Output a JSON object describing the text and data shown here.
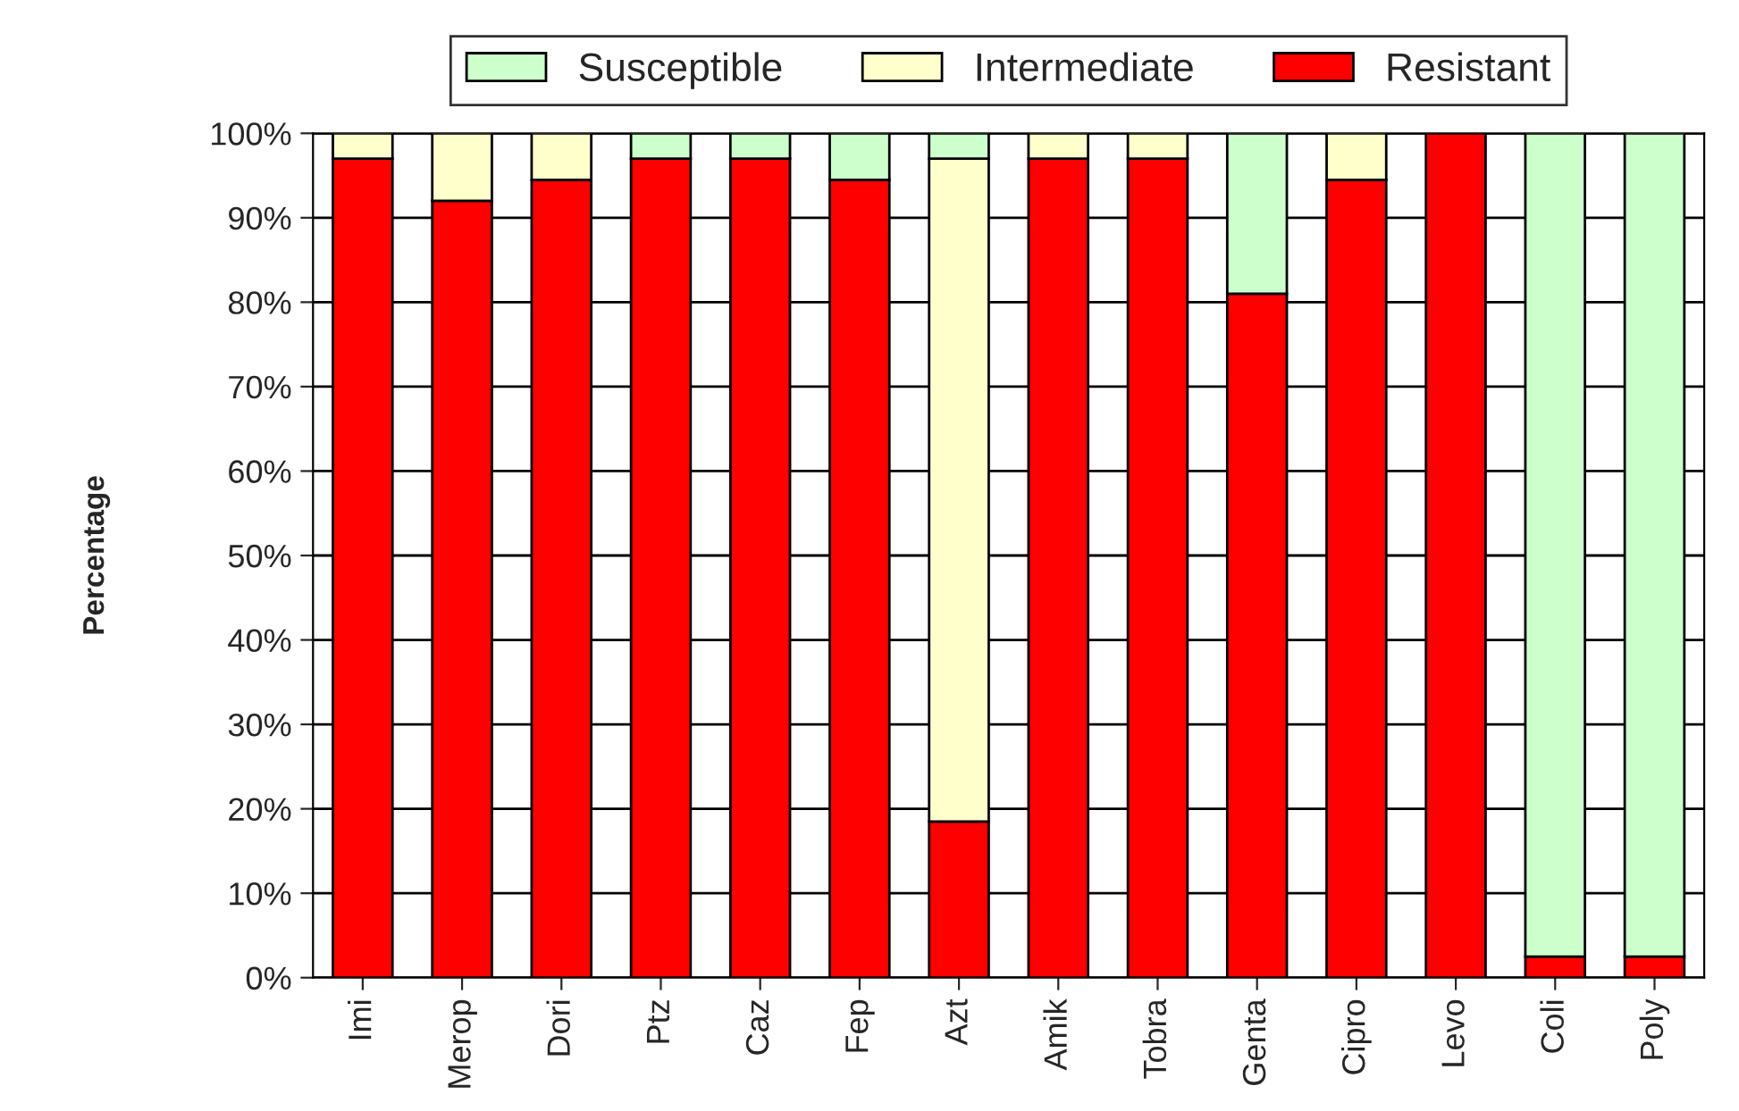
{
  "chart_data": {
    "type": "bar",
    "stacked": true,
    "ylabel": "Percentage",
    "categories": [
      "Imi",
      "Merop",
      "Dori",
      "Ptz",
      "Caz",
      "Fep",
      "Azt",
      "Amik",
      "Tobra",
      "Genta",
      "Cipro",
      "Levo",
      "Coli",
      "Poly"
    ],
    "series": [
      {
        "name": "Resistant",
        "color": "#ff0000",
        "values": [
          97,
          92,
          94.5,
          97,
          97,
          94.5,
          18.5,
          97,
          97,
          81,
          94.5,
          100,
          2.5,
          2.5
        ]
      },
      {
        "name": "Intermediate",
        "color": "#ffffcc",
        "values": [
          3,
          8,
          5.5,
          null,
          null,
          null,
          78.5,
          3,
          3,
          null,
          5.5,
          null,
          null,
          null
        ]
      },
      {
        "name": "Susceptible",
        "color": "#ccffcc",
        "values": [
          null,
          null,
          null,
          3,
          3,
          5.5,
          3,
          null,
          null,
          19,
          null,
          null,
          97.5,
          97.5
        ]
      }
    ],
    "ylim": [
      0,
      100
    ],
    "yticks": [
      {
        "value": 0,
        "label": "0%"
      },
      {
        "value": 10,
        "label": "10%"
      },
      {
        "value": 20,
        "label": "20%"
      },
      {
        "value": 30,
        "label": "30%"
      },
      {
        "value": 40,
        "label": "40%"
      },
      {
        "value": 50,
        "label": "50%"
      },
      {
        "value": 60,
        "label": "60%"
      },
      {
        "value": 70,
        "label": "70%"
      },
      {
        "value": 80,
        "label": "80%"
      },
      {
        "value": 90,
        "label": "90%"
      },
      {
        "value": 100,
        "label": "100%"
      }
    ],
    "grid": "y",
    "legend": "top"
  }
}
